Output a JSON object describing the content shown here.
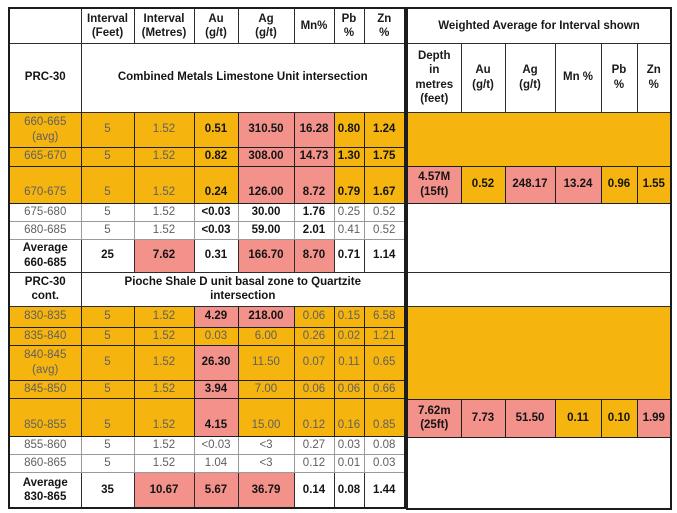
{
  "palette": {
    "yellow": "#F6B40F",
    "pink": "#F3918B",
    "text_dark": "#141414",
    "text_gray": "#5F5F5F"
  },
  "left_table": {
    "header": [
      "",
      "Interval\n(Feet)",
      "Interval\n(Metres)",
      "Au\n(g/t)",
      "Ag\n(g/t)",
      "Mn%",
      "Pb\n%",
      "Zn\n%"
    ],
    "rows": [
      {
        "type": "section",
        "label": "PRC-30",
        "title": "Combined Metals Limestone Unit intersection"
      },
      {
        "type": "data",
        "bg": "yellow",
        "label": "660-665\n(avg)",
        "feet": "5",
        "metres": "1.52",
        "au": "0.51",
        "ag": "310.50",
        "mn": "16.28",
        "pb": "0.80",
        "zn": "1.24",
        "pink": [
          "ag",
          "mn"
        ],
        "bold": [
          "au",
          "ag",
          "mn",
          "pb",
          "zn"
        ]
      },
      {
        "type": "data",
        "bg": "yellow",
        "label": "665-670",
        "feet": "5",
        "metres": "1.52",
        "au": "0.82",
        "ag": "308.00",
        "mn": "14.73",
        "pb": "1.30",
        "zn": "1.75",
        "pink": [
          "ag",
          "mn"
        ],
        "bold": [
          "au",
          "ag",
          "mn",
          "pb",
          "zn"
        ]
      },
      {
        "type": "data",
        "bg": "yellow",
        "tall": true,
        "label": "670-675",
        "feet": "5",
        "metres": "1.52",
        "au": "0.24",
        "ag": "126.00",
        "mn": "8.72",
        "pb": "0.79",
        "zn": "1.67",
        "pink": [
          "ag",
          "mn"
        ],
        "bold": [
          "au",
          "ag",
          "mn",
          "pb",
          "zn"
        ]
      },
      {
        "type": "data",
        "bg": "white",
        "label": "675-680",
        "feet": "5",
        "metres": "1.52",
        "au": "<0.03",
        "ag": "30.00",
        "mn": "1.76",
        "pb": "0.25",
        "zn": "0.52",
        "pink": [],
        "bold": [
          "au",
          "ag",
          "mn"
        ]
      },
      {
        "type": "data",
        "bg": "white",
        "label": "680-685",
        "feet": "5",
        "metres": "1.52",
        "au": "<0.03",
        "ag": "59.00",
        "mn": "2.01",
        "pb": "0.41",
        "zn": "0.52",
        "pink": [],
        "bold": [
          "au",
          "ag",
          "mn"
        ]
      },
      {
        "type": "average",
        "bg": "white",
        "label": "Average\n660-685",
        "feet": "25",
        "metres": "7.62",
        "au": "0.31",
        "ag": "166.70",
        "mn": "8.70",
        "pb": "0.71",
        "zn": "1.14",
        "pink": [
          "metres",
          "ag",
          "mn"
        ],
        "bold": []
      },
      {
        "type": "section",
        "label": "PRC-30\ncont.",
        "title": "Pioche Shale D unit basal zone to Quartzite\nintersection"
      },
      {
        "type": "data",
        "bg": "yellow",
        "label": "830-835",
        "feet": "5",
        "metres": "1.52",
        "au": "4.29",
        "ag": "218.00",
        "mn": "0.06",
        "pb": "0.15",
        "zn": "6.58",
        "pink": [
          "au",
          "ag"
        ],
        "bold": [
          "au",
          "ag"
        ]
      },
      {
        "type": "data",
        "bg": "yellow",
        "label": "835-840",
        "feet": "5",
        "metres": "1.52",
        "au": "0.03",
        "ag": "6.00",
        "mn": "0.26",
        "pb": "0.02",
        "zn": "1.21",
        "pink": [],
        "bold": []
      },
      {
        "type": "data",
        "bg": "yellow",
        "label": "840-845\n(avg)",
        "feet": "5",
        "metres": "1.52",
        "au": "26.30",
        "ag": "11.50",
        "mn": "0.07",
        "pb": "0.11",
        "zn": "0.65",
        "pink": [
          "au"
        ],
        "bold": [
          "au"
        ]
      },
      {
        "type": "data",
        "bg": "yellow",
        "label": "845-850",
        "feet": "5",
        "metres": "1.52",
        "au": "3.94",
        "ag": "7.00",
        "mn": "0.06",
        "pb": "0.06",
        "zn": "0.66",
        "pink": [
          "au"
        ],
        "bold": [
          "au"
        ]
      },
      {
        "type": "data",
        "bg": "yellow",
        "tall": true,
        "label": "850-855",
        "feet": "5",
        "metres": "1.52",
        "au": "4.15",
        "ag": "15.00",
        "mn": "0.12",
        "pb": "0.16",
        "zn": "0.85",
        "pink": [
          "au"
        ],
        "bold": [
          "au"
        ]
      },
      {
        "type": "data",
        "bg": "white",
        "label": "855-860",
        "feet": "5",
        "metres": "1.52",
        "au": "<0.03",
        "ag": "<3",
        "mn": "0.27",
        "pb": "0.03",
        "zn": "0.08",
        "pink": [],
        "bold": []
      },
      {
        "type": "data",
        "bg": "white",
        "label": "860-865",
        "feet": "5",
        "metres": "1.52",
        "au": "1.04",
        "ag": "<3",
        "mn": "0.12",
        "pb": "0.01",
        "zn": "0.03",
        "pink": [],
        "bold": []
      },
      {
        "type": "average",
        "bg": "white",
        "label": "Average\n830-865",
        "feet": "35",
        "metres": "10.67",
        "au": "5.67",
        "ag": "36.79",
        "mn": "0.14",
        "pb": "0.08",
        "zn": "1.44",
        "pink": [
          "metres",
          "au",
          "ag"
        ],
        "bold": []
      }
    ]
  },
  "right_table": {
    "title": "Weighted Average for Interval shown",
    "header": [
      "Depth\nin\nmetres\n(feet)",
      "Au\n(g/t)",
      "Ag\n(g/t)",
      "Mn %",
      "Pb\n%",
      "Zn\n%"
    ],
    "rows": [
      {
        "type": "block",
        "bg": "yellow"
      },
      {
        "type": "data",
        "depth": "4.57M\n(15ft)",
        "au": "0.52",
        "ag": "248.17",
        "mn": "13.24",
        "pb": "0.96",
        "zn": "1.55",
        "pink": [
          "depth",
          "ag",
          "mn"
        ]
      },
      {
        "type": "block",
        "bg": "white"
      },
      {
        "type": "block",
        "bg": "white"
      },
      {
        "type": "block",
        "bg": "yellow"
      },
      {
        "type": "data",
        "depth": "7.62m\n(25ft)",
        "au": "7.73",
        "ag": "51.50",
        "mn": "0.11",
        "pb": "0.10",
        "zn": "1.99",
        "pink": [
          "depth",
          "au",
          "ag",
          "zn"
        ]
      },
      {
        "type": "block",
        "bg": "white"
      }
    ]
  }
}
